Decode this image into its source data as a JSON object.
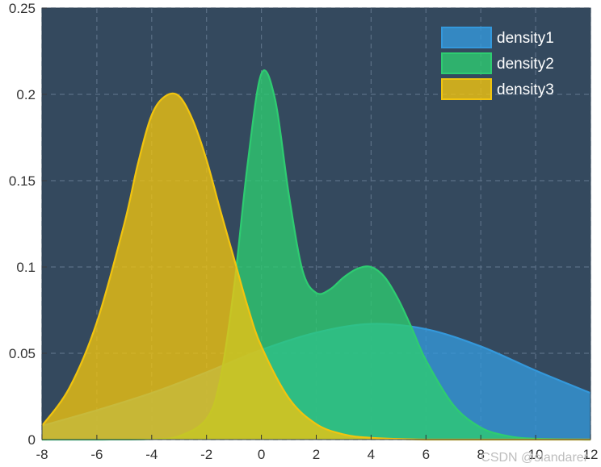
{
  "watermark": "CSDN @slandarer",
  "chart_data": {
    "type": "area",
    "title": "",
    "xlabel": "",
    "ylabel": "",
    "xlim": [
      -8,
      12
    ],
    "ylim": [
      0,
      0.25
    ],
    "xticks": [
      -8,
      -6,
      -4,
      -2,
      0,
      2,
      4,
      6,
      8,
      10,
      12
    ],
    "yticks": [
      0,
      0.05,
      0.1,
      0.15,
      0.2,
      0.25
    ],
    "xtick_labels": [
      "-8",
      "-6",
      "-4",
      "-2",
      "0",
      "2",
      "4",
      "6",
      "8",
      "10",
      "12"
    ],
    "ytick_labels": [
      "0",
      "0.05",
      "0.1",
      "0.15",
      "0.2",
      "0.25"
    ],
    "grid": true,
    "legend_position": "top-right",
    "background": "#34495e",
    "series": [
      {
        "name": "density1",
        "color": "#3498db",
        "x": [
          -8,
          -6,
          -4,
          -2,
          0,
          2,
          4,
          6,
          8,
          10,
          12
        ],
        "values": [
          0.008,
          0.017,
          0.027,
          0.039,
          0.052,
          0.062,
          0.067,
          0.064,
          0.054,
          0.04,
          0.027
        ]
      },
      {
        "name": "density2",
        "color": "#2ecc71",
        "x": [
          -8,
          -6,
          -4,
          -3,
          -2,
          -1.5,
          -1,
          -0.5,
          0,
          0.5,
          1,
          1.5,
          2,
          2.5,
          3,
          3.5,
          4,
          4.5,
          5,
          5.5,
          6,
          7,
          8,
          9,
          10,
          12
        ],
        "values": [
          0,
          0,
          0.0003,
          0.002,
          0.012,
          0.035,
          0.088,
          0.16,
          0.212,
          0.197,
          0.142,
          0.098,
          0.085,
          0.087,
          0.094,
          0.099,
          0.1,
          0.094,
          0.081,
          0.064,
          0.046,
          0.02,
          0.007,
          0.002,
          0.0005,
          0
        ]
      },
      {
        "name": "density3",
        "color": "#f1c40f",
        "x": [
          -8,
          -7,
          -6,
          -5,
          -4.5,
          -4,
          -3.5,
          -3,
          -2.5,
          -2,
          -1.5,
          -1,
          -0.5,
          0,
          1,
          2,
          3,
          4,
          6,
          8,
          12
        ],
        "values": [
          0.008,
          0.03,
          0.068,
          0.125,
          0.16,
          0.188,
          0.199,
          0.199,
          0.185,
          0.162,
          0.133,
          0.105,
          0.077,
          0.054,
          0.024,
          0.009,
          0.003,
          0.001,
          0,
          0,
          0
        ]
      }
    ]
  }
}
